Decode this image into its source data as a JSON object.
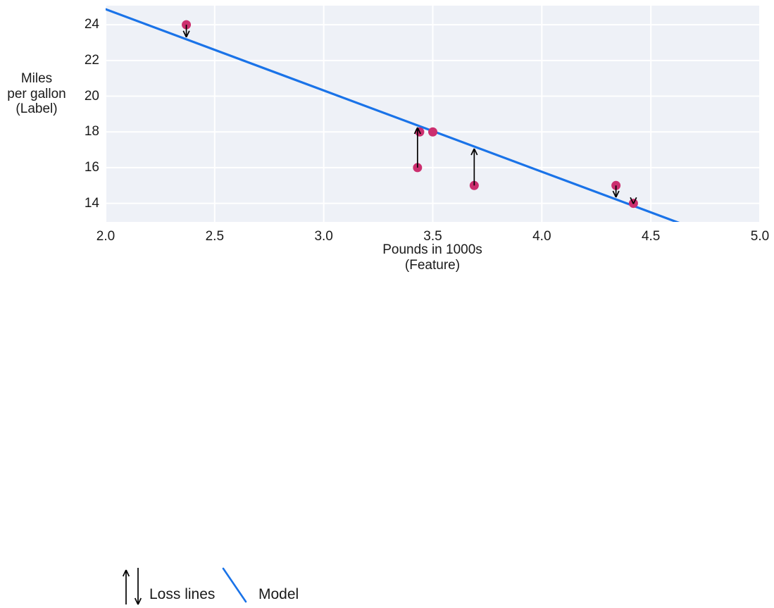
{
  "chart_data": {
    "type": "scatter",
    "title": "",
    "xlabel_lines": [
      "Pounds in 1000s",
      "(Feature)"
    ],
    "ylabel_lines": [
      "Miles",
      "per gallon",
      "(Label)"
    ],
    "xlim": [
      2.0,
      5.0
    ],
    "ylim": [
      12.96,
      25.07
    ],
    "grid": true,
    "legend_position": "bottom-left",
    "x_tick_values": [
      2.0,
      2.5,
      3.0,
      3.5,
      4.0,
      4.5,
      5.0
    ],
    "x_tick_labels": [
      "2.0",
      "2.5",
      "3.0",
      "3.5",
      "4.0",
      "4.5",
      "5.0"
    ],
    "y_tick_values": [
      14,
      16,
      18,
      20,
      22,
      24
    ],
    "y_tick_labels": [
      "14",
      "16",
      "18",
      "20",
      "22",
      "24"
    ],
    "points": [
      {
        "x": 2.37,
        "y": 24,
        "loss_line": true
      },
      {
        "x": 3.43,
        "y": 16,
        "loss_line": true
      },
      {
        "x": 3.44,
        "y": 18,
        "loss_line": false
      },
      {
        "x": 3.5,
        "y": 18,
        "loss_line": false
      },
      {
        "x": 3.69,
        "y": 15,
        "loss_line": true
      },
      {
        "x": 4.34,
        "y": 15,
        "loss_line": true
      },
      {
        "x": 4.42,
        "y": 14,
        "loss_line": true
      }
    ],
    "model_line": {
      "slope": -4.55,
      "intercept": 33.97
    },
    "legend": [
      {
        "symbol": "loss-arrows",
        "label": "Loss lines"
      },
      {
        "symbol": "model-line",
        "label": "Model"
      }
    ],
    "colors": {
      "point": "#cc2f6f",
      "model": "#1a73e8",
      "arrow": "#000000",
      "plot_bg": "#eef1f7",
      "grid": "#ffffff",
      "text": "#1a1a1a"
    }
  }
}
